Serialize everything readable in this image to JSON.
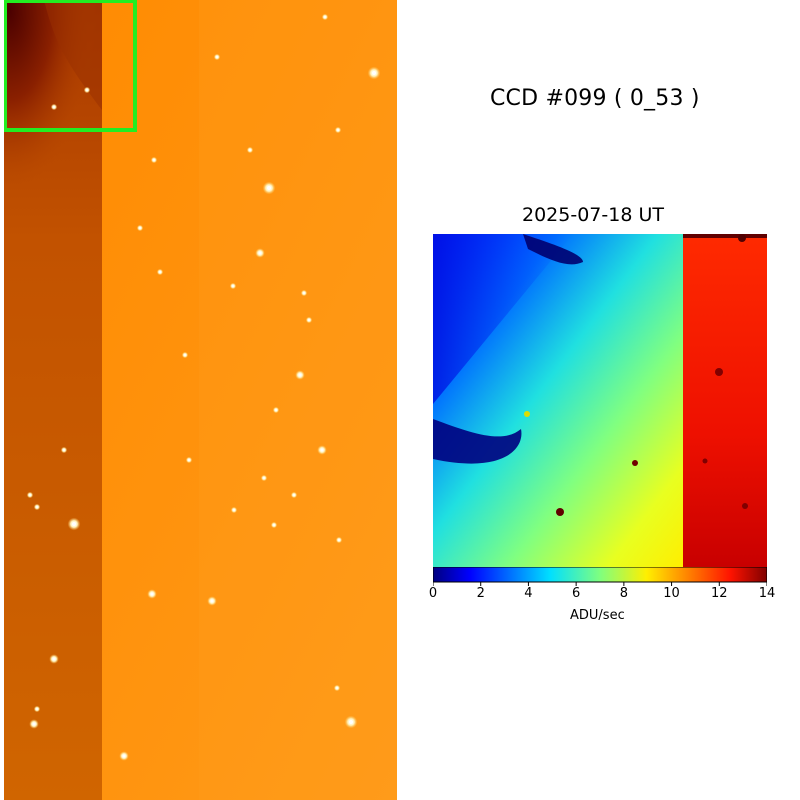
{
  "ccd_title": "CCD #099 ( 0_53 )",
  "zoom_title": "2025-07-18 UT",
  "colorbar": {
    "label": "ADU/sec",
    "min": 0,
    "max": 14,
    "ticks": [
      "0",
      "2",
      "4",
      "6",
      "8",
      "10",
      "12",
      "14"
    ],
    "colormap": "jet"
  },
  "colors": {
    "highlight_box": "#22ee22",
    "ccd_base": "#ff8c00",
    "ccd_dark_strip": "#c85400"
  }
}
